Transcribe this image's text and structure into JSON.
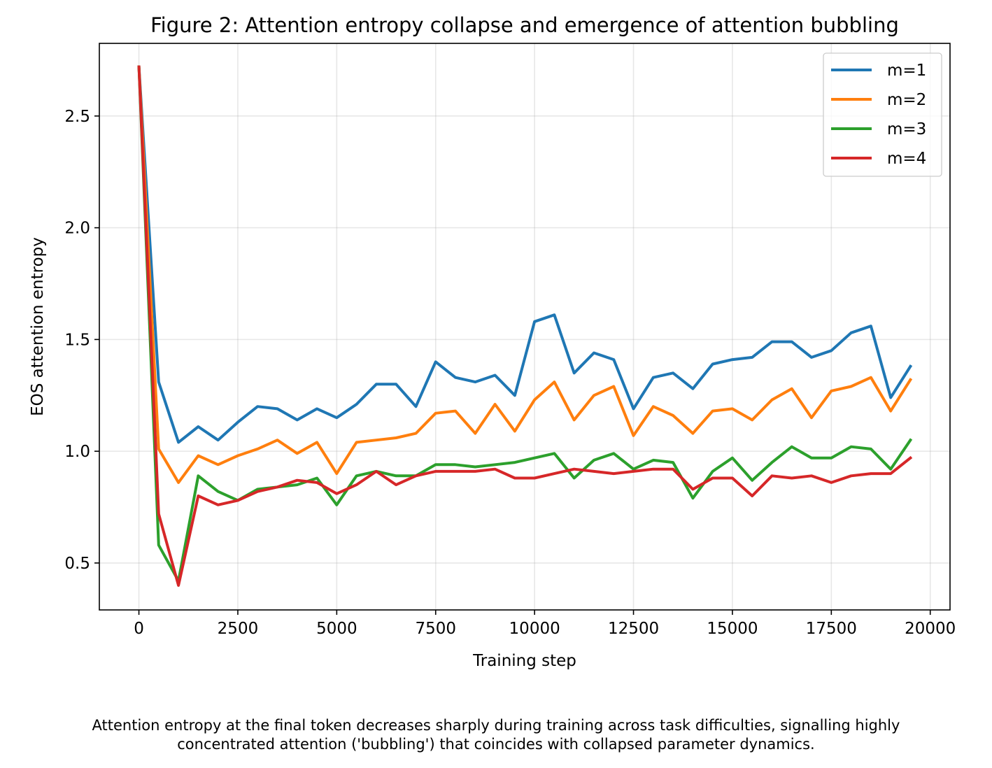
{
  "chart_data": {
    "type": "line",
    "title": "Figure 2: Attention entropy collapse and emergence of attention bubbling",
    "xlabel": "Training step",
    "ylabel": "EOS attention entropy",
    "xlim": [
      -1000,
      20500
    ],
    "ylim": [
      0.29,
      2.825
    ],
    "xticks": [
      0,
      2500,
      5000,
      7500,
      10000,
      12500,
      15000,
      17500,
      20000
    ],
    "xtick_labels": [
      "0",
      "2500",
      "5000",
      "7500",
      "10000",
      "12500",
      "15000",
      "17500",
      "20000"
    ],
    "yticks": [
      0.5,
      1.0,
      1.5,
      2.0,
      2.5
    ],
    "ytick_labels": [
      "0.5",
      "1.0",
      "1.5",
      "2.0",
      "2.5"
    ],
    "grid": true,
    "legend_position": "top-right",
    "x": [
      0,
      500,
      1000,
      1500,
      2000,
      2500,
      3000,
      3500,
      4000,
      4500,
      5000,
      5500,
      6000,
      6500,
      7000,
      7500,
      8000,
      8500,
      9000,
      9500,
      10000,
      10500,
      11000,
      11500,
      12000,
      12500,
      13000,
      13500,
      14000,
      14500,
      15000,
      15500,
      16000,
      16500,
      17000,
      17500,
      18000,
      18500,
      19000,
      19500
    ],
    "series": [
      {
        "name": "m=1",
        "color": "#1f77b4",
        "values": [
          2.72,
          1.31,
          1.04,
          1.11,
          1.05,
          1.13,
          1.2,
          1.19,
          1.14,
          1.19,
          1.15,
          1.21,
          1.3,
          1.3,
          1.2,
          1.4,
          1.33,
          1.31,
          1.34,
          1.25,
          1.58,
          1.61,
          1.35,
          1.44,
          1.41,
          1.19,
          1.33,
          1.35,
          1.28,
          1.39,
          1.41,
          1.42,
          1.49,
          1.49,
          1.42,
          1.45,
          1.53,
          1.56,
          1.24,
          1.38
        ]
      },
      {
        "name": "m=2",
        "color": "#ff7f0e",
        "values": [
          2.72,
          1.01,
          0.86,
          0.98,
          0.94,
          0.98,
          1.01,
          1.05,
          0.99,
          1.04,
          0.9,
          1.04,
          1.05,
          1.06,
          1.08,
          1.17,
          1.18,
          1.08,
          1.21,
          1.09,
          1.23,
          1.31,
          1.14,
          1.25,
          1.29,
          1.07,
          1.2,
          1.16,
          1.08,
          1.18,
          1.19,
          1.14,
          1.23,
          1.28,
          1.15,
          1.27,
          1.29,
          1.33,
          1.18,
          1.32
        ]
      },
      {
        "name": "m=3",
        "color": "#2ca02c",
        "values": [
          2.72,
          0.58,
          0.42,
          0.89,
          0.82,
          0.78,
          0.83,
          0.84,
          0.85,
          0.88,
          0.76,
          0.89,
          0.91,
          0.89,
          0.89,
          0.94,
          0.94,
          0.93,
          0.94,
          0.95,
          0.97,
          0.99,
          0.88,
          0.96,
          0.99,
          0.92,
          0.96,
          0.95,
          0.79,
          0.91,
          0.97,
          0.87,
          0.95,
          1.02,
          0.97,
          0.97,
          1.02,
          1.01,
          0.92,
          1.05
        ]
      },
      {
        "name": "m=4",
        "color": "#d62728",
        "values": [
          2.72,
          0.72,
          0.4,
          0.8,
          0.76,
          0.78,
          0.82,
          0.84,
          0.87,
          0.86,
          0.81,
          0.85,
          0.91,
          0.85,
          0.89,
          0.91,
          0.91,
          0.91,
          0.92,
          0.88,
          0.88,
          0.9,
          0.92,
          0.91,
          0.9,
          0.91,
          0.92,
          0.92,
          0.83,
          0.88,
          0.88,
          0.8,
          0.89,
          0.88,
          0.89,
          0.86,
          0.89,
          0.9,
          0.9,
          0.97
        ]
      }
    ]
  },
  "caption": {
    "line1": "Attention entropy at the final token decreases sharply during training across task difficulties, signalling highly",
    "line2": "concentrated attention ('bubbling') that coincides with collapsed parameter dynamics."
  }
}
